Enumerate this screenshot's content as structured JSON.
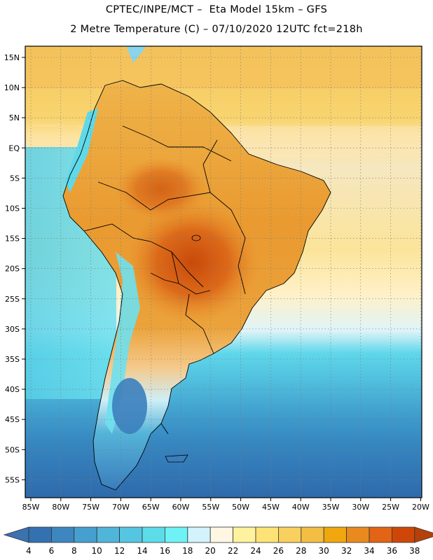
{
  "title_line1": "CPTEC/INPE/MCT –  Eta Model 15km – GFS",
  "title_line2": "2 Metre Temperature (C) – 07/10/2020 12UTC fct=218h",
  "lat_labels": [
    "15N",
    "10N",
    "5N",
    "EQ",
    "5S",
    "10S",
    "15S",
    "20S",
    "25S",
    "30S",
    "35S",
    "40S",
    "45S",
    "50S",
    "55S"
  ],
  "lat_values": [
    15,
    10,
    5,
    0,
    -5,
    -10,
    -15,
    -20,
    -25,
    -30,
    -35,
    -40,
    -45,
    -50,
    -55
  ],
  "lon_labels": [
    "85W",
    "80W",
    "75W",
    "70W",
    "65W",
    "60W",
    "55W",
    "50W",
    "45W",
    "40W",
    "35W",
    "30W",
    "25W",
    "20W"
  ],
  "lon_values": [
    -85,
    -80,
    -75,
    -70,
    -65,
    -60,
    -55,
    -50,
    -45,
    -40,
    -35,
    -30,
    -25,
    -20
  ],
  "colorbar": {
    "ticks": [
      "4",
      "6",
      "8",
      "10",
      "12",
      "14",
      "16",
      "18",
      "20",
      "22",
      "24",
      "26",
      "28",
      "30",
      "32",
      "34",
      "36",
      "38"
    ],
    "low_color": "#3b72b0",
    "high_color": "#b5400a",
    "colors": [
      "#3471b0",
      "#3d86bf",
      "#45a0cf",
      "#4fb5d9",
      "#55c6e1",
      "#5cdbe9",
      "#6ef2f6",
      "#d2f3fb",
      "#fff7e3",
      "#fff29e",
      "#fde276",
      "#f8d05e",
      "#f2be43",
      "#f0a70e",
      "#e98a1e",
      "#e16514",
      "#cf4708"
    ]
  }
}
